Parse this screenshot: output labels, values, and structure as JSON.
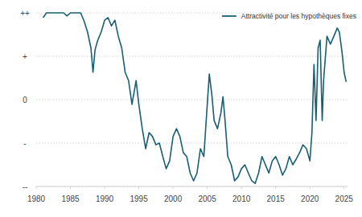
{
  "chart_data": {
    "type": "line",
    "x": [
      1981,
      1981.5,
      1982,
      1983,
      1984,
      1984.5,
      1985,
      1986,
      1986.5,
      1987,
      1987.5,
      1988,
      1988.3,
      1988.6,
      1989,
      1989.5,
      1990,
      1990.5,
      1991,
      1991.5,
      1992,
      1992.5,
      1993,
      1993.5,
      1994,
      1994.6,
      1995,
      1995.5,
      1996,
      1996.5,
      1997,
      1997.5,
      1998,
      1998.5,
      1999,
      1999.5,
      2000,
      2000.5,
      2001,
      2001.5,
      2002,
      2002.5,
      2003,
      2003.5,
      2004,
      2004.5,
      2005,
      2005.3,
      2005.7,
      2006,
      2006.5,
      2007,
      2007.3,
      2007.6,
      2008,
      2008.5,
      2009,
      2009.5,
      2010,
      2010.5,
      2011,
      2011.5,
      2012,
      2012.5,
      2013,
      2013.5,
      2014,
      2014.5,
      2015,
      2015.5,
      2016,
      2016.5,
      2017,
      2017.5,
      2018,
      2018.5,
      2019,
      2019.5,
      2020,
      2020.3,
      2020.6,
      2020.9,
      2021.2,
      2021.5,
      2021.8,
      2022,
      2022.5,
      2023,
      2023.5,
      2024,
      2024.3,
      2024.7,
      2025,
      2025.3
    ],
    "series": [
      {
        "name": "Attractivité pour les hypothèques fixes",
        "color": "#175f73",
        "values": [
          1.89,
          2,
          2,
          2,
          2,
          1.93,
          2,
          2,
          2,
          1.81,
          1.56,
          1.19,
          0.63,
          1.15,
          1.37,
          1.56,
          1.83,
          1.89,
          1.7,
          1.83,
          1.46,
          1.19,
          0.63,
          0.44,
          -0.11,
          0.44,
          -0.11,
          -0.67,
          -1.13,
          -0.76,
          -0.85,
          -1.04,
          -1.0,
          -1.31,
          -1.59,
          -1.41,
          -0.85,
          -0.67,
          -0.85,
          -1.22,
          -1.31,
          -1.69,
          -1.87,
          -1.69,
          -1.13,
          -1.31,
          -0.11,
          0.59,
          0.07,
          -0.48,
          -0.67,
          -0.3,
          0.07,
          -0.48,
          -1.31,
          -1.5,
          -1.87,
          -1.78,
          -1.59,
          -1.5,
          -1.69,
          -1.87,
          -1.93,
          -1.69,
          -1.31,
          -1.5,
          -1.69,
          -1.41,
          -1.31,
          -1.5,
          -1.74,
          -1.59,
          -1.31,
          -1.5,
          -1.37,
          -1.22,
          -1.04,
          -1.13,
          -1.41,
          -0.76,
          0.81,
          -0.48,
          1.19,
          1.37,
          -0.48,
          0.44,
          1.46,
          1.28,
          1.46,
          1.65,
          1.56,
          1.09,
          0.63,
          0.41
        ]
      }
    ],
    "xlim": [
      1980,
      2025.5
    ],
    "xticks": [
      1980,
      1985,
      1990,
      1995,
      2000,
      2005,
      2010,
      2015,
      2020,
      2025
    ],
    "ylim": [
      -2,
      2
    ],
    "yticks": [
      {
        "value": -2,
        "label": "--"
      },
      {
        "value": -1,
        "label": "-"
      },
      0,
      {
        "value": 1,
        "label": "+"
      },
      {
        "value": 2,
        "label": "++"
      }
    ],
    "grid": true,
    "legend": "top-right"
  }
}
